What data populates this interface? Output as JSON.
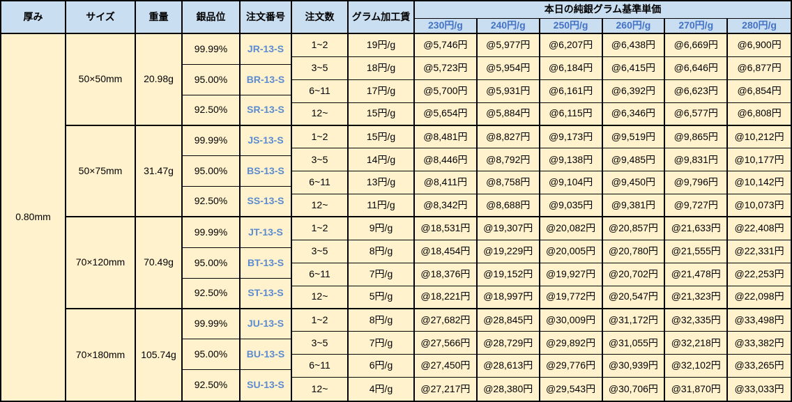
{
  "header": {
    "thickness": "厚み",
    "size": "サイズ",
    "weight": "重量",
    "purity": "銀品位",
    "order_no": "注文番号",
    "order_qty": "注文数",
    "gram_fee": "グラム加工賃",
    "price_group": "本日の純銀グラム基準単価",
    "price_columns": [
      "230円/g",
      "240円/g",
      "250円/g",
      "260円/g",
      "270円/g",
      "280円/g"
    ]
  },
  "thickness": "0.80mm",
  "blocks": [
    {
      "size": "50×50mm",
      "weight": "20.98g",
      "purities": [
        {
          "purity": "99.99%",
          "order_no": "JR-13-S"
        },
        {
          "purity": "95.00%",
          "order_no": "BR-13-S"
        },
        {
          "purity": "92.50%",
          "order_no": "SR-13-S"
        }
      ],
      "rows": [
        {
          "qty": "1~2",
          "fee": "19円/g",
          "prices": [
            "@5,746円",
            "@5,977円",
            "@6,207円",
            "@6,438円",
            "@6,669円",
            "@6,900円"
          ]
        },
        {
          "qty": "3~5",
          "fee": "18円/g",
          "prices": [
            "@5,723円",
            "@5,954円",
            "@6,184円",
            "@6,415円",
            "@6,646円",
            "@6,877円"
          ]
        },
        {
          "qty": "6~11",
          "fee": "17円/g",
          "prices": [
            "@5,700円",
            "@5,931円",
            "@6,161円",
            "@6,392円",
            "@6,623円",
            "@6,854円"
          ]
        },
        {
          "qty": "12~",
          "fee": "15円/g",
          "prices": [
            "@5,654円",
            "@5,884円",
            "@6,115円",
            "@6,346円",
            "@6,577円",
            "@6,808円"
          ]
        }
      ]
    },
    {
      "size": "50×75mm",
      "weight": "31.47g",
      "purities": [
        {
          "purity": "99.99%",
          "order_no": "JS-13-S"
        },
        {
          "purity": "95.00%",
          "order_no": "BS-13-S"
        },
        {
          "purity": "92.50%",
          "order_no": "SS-13-S"
        }
      ],
      "rows": [
        {
          "qty": "1~2",
          "fee": "15円/g",
          "prices": [
            "@8,481円",
            "@8,827円",
            "@9,173円",
            "@9,519円",
            "@9,865円",
            "@10,212円"
          ]
        },
        {
          "qty": "3~5",
          "fee": "14円/g",
          "prices": [
            "@8,446円",
            "@8,792円",
            "@9,138円",
            "@9,485円",
            "@9,831円",
            "@10,177円"
          ]
        },
        {
          "qty": "6~11",
          "fee": "13円/g",
          "prices": [
            "@8,411円",
            "@8,758円",
            "@9,104円",
            "@9,450円",
            "@9,796円",
            "@10,142円"
          ]
        },
        {
          "qty": "12~",
          "fee": "11円/g",
          "prices": [
            "@8,342円",
            "@8,688円",
            "@9,035円",
            "@9,381円",
            "@9,727円",
            "@10,073円"
          ]
        }
      ]
    },
    {
      "size": "70×120mm",
      "weight": "70.49g",
      "purities": [
        {
          "purity": "99.99%",
          "order_no": "JT-13-S"
        },
        {
          "purity": "95.00%",
          "order_no": "BT-13-S"
        },
        {
          "purity": "92.50%",
          "order_no": "ST-13-S"
        }
      ],
      "rows": [
        {
          "qty": "1~2",
          "fee": "9円/g",
          "prices": [
            "@18,531円",
            "@19,307円",
            "@20,082円",
            "@20,857円",
            "@21,633円",
            "@22,408円"
          ]
        },
        {
          "qty": "3~5",
          "fee": "8円/g",
          "prices": [
            "@18,454円",
            "@19,229円",
            "@20,005円",
            "@20,780円",
            "@21,555円",
            "@22,331円"
          ]
        },
        {
          "qty": "6~11",
          "fee": "7円/g",
          "prices": [
            "@18,376円",
            "@19,152円",
            "@19,927円",
            "@20,702円",
            "@21,478円",
            "@22,253円"
          ]
        },
        {
          "qty": "12~",
          "fee": "5円/g",
          "prices": [
            "@18,221円",
            "@18,997円",
            "@19,772円",
            "@20,547円",
            "@21,323円",
            "@22,098円"
          ]
        }
      ]
    },
    {
      "size": "70×180mm",
      "weight": "105.74g",
      "purities": [
        {
          "purity": "99.99%",
          "order_no": "JU-13-S"
        },
        {
          "purity": "95.00%",
          "order_no": "BU-13-S"
        },
        {
          "purity": "92.50%",
          "order_no": "SU-13-S"
        }
      ],
      "rows": [
        {
          "qty": "1~2",
          "fee": "8円/g",
          "prices": [
            "@27,682円",
            "@28,845円",
            "@30,009円",
            "@31,172円",
            "@32,335円",
            "@33,498円"
          ]
        },
        {
          "qty": "3~5",
          "fee": "7円/g",
          "prices": [
            "@27,566円",
            "@28,729円",
            "@29,892円",
            "@31,055円",
            "@32,218円",
            "@33,382円"
          ]
        },
        {
          "qty": "6~11",
          "fee": "6円/g",
          "prices": [
            "@27,450円",
            "@28,613円",
            "@29,776円",
            "@30,939円",
            "@32,102円",
            "@33,265円"
          ]
        },
        {
          "qty": "12~",
          "fee": "4円/g",
          "prices": [
            "@27,217円",
            "@28,380円",
            "@29,543円",
            "@30,706円",
            "@31,870円",
            "@33,033円"
          ]
        }
      ]
    }
  ],
  "colors": {
    "header_bg": "#C9DEF1",
    "cell_bg": "#FFF2CC",
    "border": "#000000",
    "subheader_text": "#4472C4",
    "order_no_text": "#5B8BD0"
  }
}
